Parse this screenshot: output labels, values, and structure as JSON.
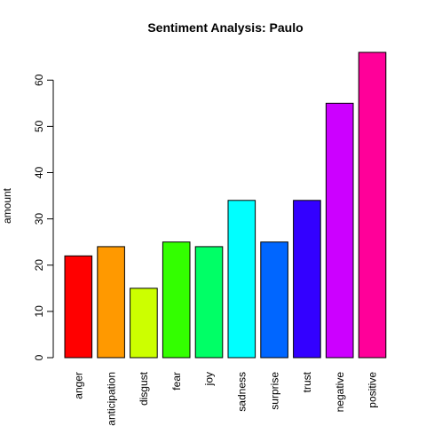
{
  "chart_data": {
    "type": "bar",
    "title": "Sentiment Analysis: Paulo",
    "xlabel": "",
    "ylabel": "amount",
    "categories": [
      "anger",
      "anticipation",
      "disgust",
      "fear",
      "joy",
      "sadness",
      "surprise",
      "trust",
      "negative",
      "positive"
    ],
    "values": [
      22,
      24,
      15,
      25,
      24,
      34,
      25,
      34,
      55,
      66
    ],
    "colors": [
      "#FF0000",
      "#FF9900",
      "#CCFF00",
      "#33FF00",
      "#00FF66",
      "#00FFFF",
      "#0066FF",
      "#3300FF",
      "#CC00FF",
      "#FF0099"
    ],
    "yticks": [
      0,
      10,
      20,
      30,
      40,
      50,
      60
    ],
    "ylim": [
      0,
      66
    ],
    "grid": false,
    "legend": "none"
  }
}
